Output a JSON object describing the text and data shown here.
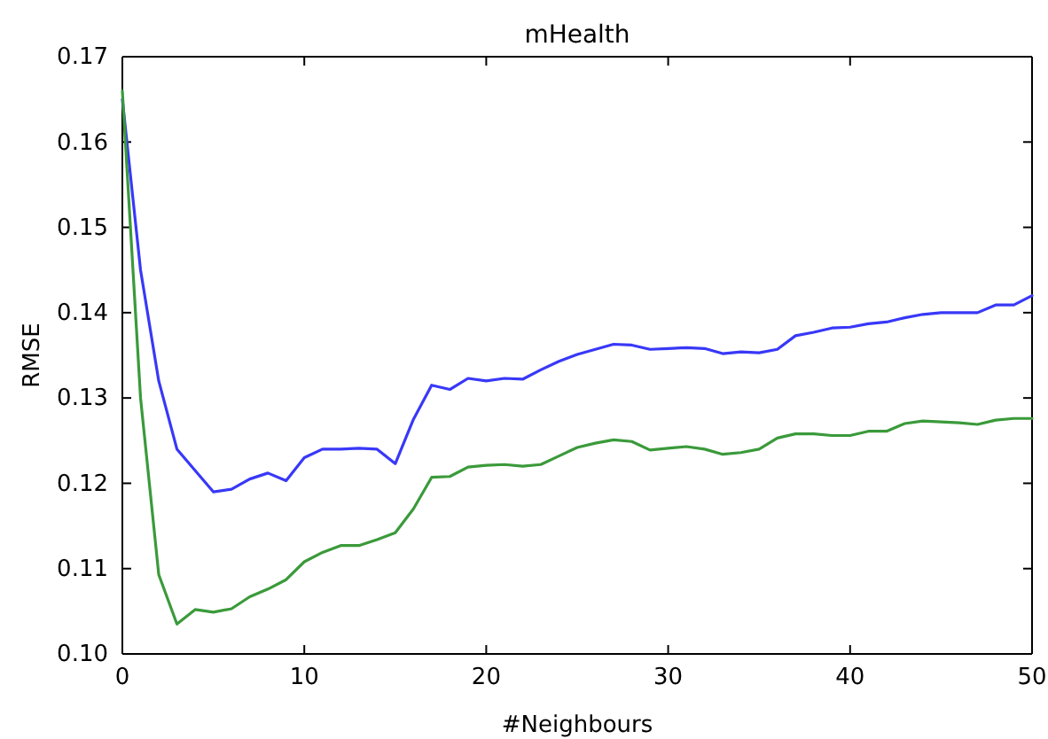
{
  "chart_data": {
    "type": "line",
    "title": "mHealth",
    "xlabel": "#Neighbours",
    "ylabel": "RMSE",
    "x": [
      0,
      1,
      2,
      3,
      4,
      5,
      6,
      7,
      8,
      9,
      10,
      11,
      12,
      13,
      14,
      15,
      16,
      17,
      18,
      19,
      20,
      21,
      22,
      23,
      24,
      25,
      26,
      27,
      28,
      29,
      30,
      31,
      32,
      33,
      34,
      35,
      36,
      37,
      38,
      39,
      40,
      41,
      42,
      43,
      44,
      45,
      46,
      47,
      48,
      49,
      50
    ],
    "xlim": [
      0,
      50
    ],
    "xticks": [
      0,
      10,
      20,
      30,
      40,
      50
    ],
    "ylim": [
      0.1,
      0.17
    ],
    "yticks": [
      {
        "value": 0.1,
        "label": "0.10"
      },
      {
        "value": 0.11,
        "label": "0.11"
      },
      {
        "value": 0.12,
        "label": "0.12"
      },
      {
        "value": 0.13,
        "label": "0.13"
      },
      {
        "value": 0.14,
        "label": "0.14"
      },
      {
        "value": 0.15,
        "label": "0.15"
      },
      {
        "value": 0.16,
        "label": "0.16"
      },
      {
        "value": 0.17,
        "label": "0.17"
      }
    ],
    "grid": false,
    "series": [
      {
        "color": "#3838f8",
        "values": [
          0.165,
          0.145,
          0.132,
          0.124,
          0.1215,
          0.119,
          0.1193,
          0.1205,
          0.1212,
          0.1203,
          0.123,
          0.124,
          0.124,
          0.1241,
          0.124,
          0.1223,
          0.1275,
          0.1315,
          0.131,
          0.1323,
          0.132,
          0.1323,
          0.1322,
          0.1333,
          0.1343,
          0.1351,
          0.1357,
          0.1363,
          0.1362,
          0.1357,
          0.1358,
          0.1359,
          0.1358,
          0.1352,
          0.1354,
          0.1353,
          0.1357,
          0.1373,
          0.1377,
          0.1382,
          0.1383,
          0.1387,
          0.1389,
          0.1394,
          0.1398,
          0.14,
          0.14,
          0.14,
          0.1409,
          0.1409,
          0.142
        ]
      },
      {
        "color": "#3a9a3a",
        "values": [
          0.166,
          0.13,
          0.1093,
          0.1035,
          0.1052,
          0.1049,
          0.1053,
          0.1067,
          0.1076,
          0.1087,
          0.1108,
          0.1119,
          0.1127,
          0.1127,
          0.1134,
          0.1142,
          0.117,
          0.1207,
          0.1208,
          0.1219,
          0.1221,
          0.1222,
          0.122,
          0.1222,
          0.1232,
          0.1242,
          0.1247,
          0.1251,
          0.1249,
          0.1239,
          0.1241,
          0.1243,
          0.124,
          0.1234,
          0.1236,
          0.124,
          0.1253,
          0.1258,
          0.1258,
          0.1256,
          0.1256,
          0.1261,
          0.1261,
          0.127,
          0.1273,
          0.1272,
          0.1271,
          0.1269,
          0.1274,
          0.1276,
          0.1276
        ]
      }
    ]
  }
}
